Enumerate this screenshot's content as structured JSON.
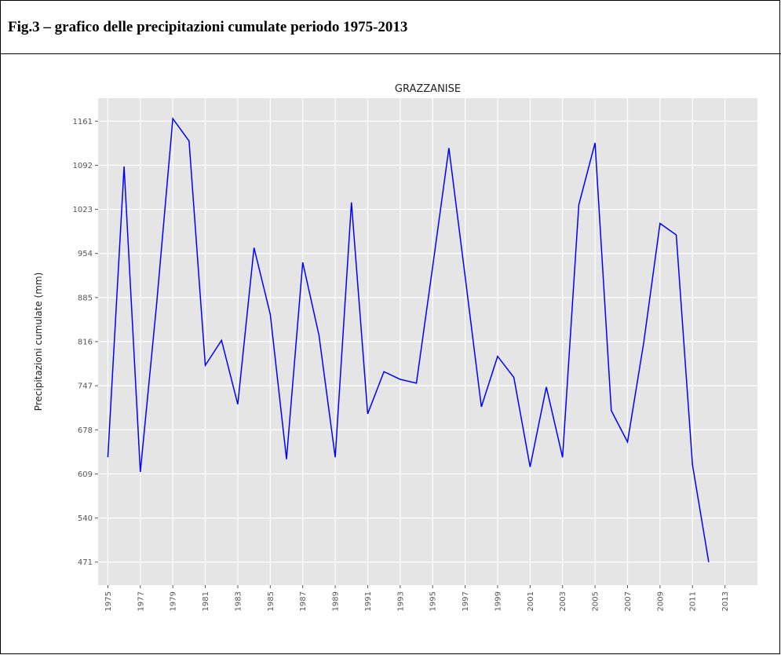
{
  "header": {
    "title": "Fig.3 – grafico delle precipitazioni cumulate periodo 1975-2013"
  },
  "chart_data": {
    "type": "line",
    "title": "GRAZZANISE",
    "y_label": "Precipitazioni cumulate (mm)",
    "x": [
      1975,
      1976,
      1977,
      1978,
      1979,
      1980,
      1981,
      1982,
      1983,
      1984,
      1985,
      1986,
      1987,
      1988,
      1989,
      1990,
      1991,
      1992,
      1993,
      1994,
      1995,
      1996,
      1997,
      1998,
      1999,
      2000,
      2001,
      2002,
      2003,
      2004,
      2005,
      2006,
      2007,
      2008,
      2009,
      2010,
      2011,
      2012
    ],
    "series": [
      {
        "name": "GRAZZANISE",
        "color": "#0000ff",
        "values": [
          635,
          1090,
          612,
          874,
          1165,
          1130,
          779,
          818,
          718,
          963,
          859,
          632,
          940,
          826,
          635,
          1034,
          703,
          769,
          757,
          751,
          933,
          1119,
          918,
          714,
          793,
          760,
          620,
          745,
          635,
          1030,
          1127,
          708,
          659,
          815,
          1001,
          983,
          623,
          471
        ]
      }
    ],
    "xlim": [
      1974.4,
      2015
    ],
    "xticks": [
      1975,
      1977,
      1979,
      1981,
      1983,
      1985,
      1987,
      1989,
      1991,
      1993,
      1995,
      1997,
      1999,
      2001,
      2003,
      2005,
      2007,
      2009,
      2011,
      2013
    ],
    "ylim": [
      435,
      1197
    ],
    "yticks": [
      471,
      540,
      609,
      678,
      747,
      816,
      885,
      954,
      1023,
      1092,
      1161
    ],
    "grid": true
  }
}
